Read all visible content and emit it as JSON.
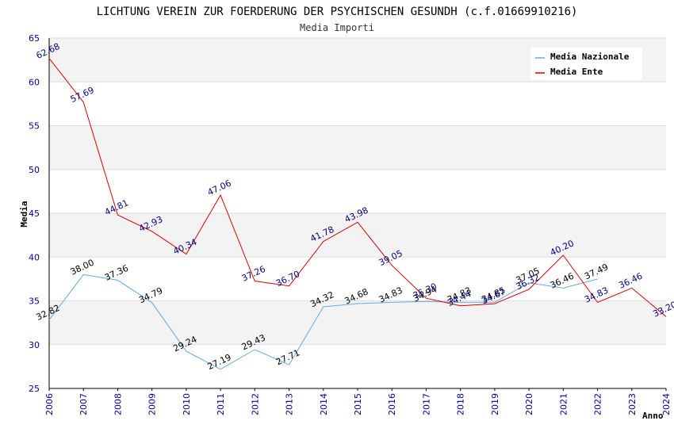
{
  "chart_data": {
    "type": "line",
    "title": "LICHTUNG VEREIN ZUR FOERDERUNG DER PSYCHISCHEN GESUNDH (c.f.01669910216)",
    "subtitle": "Media Importi",
    "xlabel": "Anno",
    "ylabel": "Media",
    "ylim": [
      25,
      65
    ],
    "yticks": [
      25,
      30,
      35,
      40,
      45,
      50,
      55,
      60,
      65
    ],
    "x": [
      2006,
      2007,
      2008,
      2009,
      2010,
      2011,
      2012,
      2013,
      2014,
      2015,
      2016,
      2017,
      2018,
      2019,
      2020,
      2021,
      2022,
      2023,
      2024
    ],
    "series": [
      {
        "name": "Media Nazionale",
        "color": "#66aadd",
        "label_color": "#000000",
        "x": [
          2006,
          2007,
          2008,
          2009,
          2010,
          2011,
          2012,
          2013,
          2014,
          2015,
          2016,
          2017,
          2018,
          2019,
          2020,
          2021,
          2022
        ],
        "values": [
          32.82,
          38.0,
          37.36,
          34.79,
          29.24,
          27.19,
          29.43,
          27.71,
          34.32,
          34.68,
          34.83,
          34.94,
          34.83,
          34.85,
          37.05,
          36.46,
          37.49
        ],
        "labels": [
          "32.82",
          "38.00",
          "37.36",
          "34.79",
          "29.24",
          "27.19",
          "29.43",
          "27.71",
          "34.32",
          "34.68",
          "34.83",
          "34.94",
          "34.83",
          "34.85",
          "37.05",
          "36.46",
          "37.49"
        ]
      },
      {
        "name": "Media Ente",
        "color": "#dd0000",
        "label_color": "#000080",
        "x": [
          2006,
          2007,
          2008,
          2009,
          2010,
          2011,
          2012,
          2013,
          2014,
          2015,
          2016,
          2017,
          2018,
          2019,
          2020,
          2021,
          2022,
          2023,
          2024
        ],
        "values": [
          62.68,
          57.69,
          44.81,
          42.93,
          40.34,
          47.06,
          37.26,
          36.7,
          41.78,
          43.98,
          39.05,
          35.3,
          34.44,
          34.67,
          36.32,
          40.2,
          34.83,
          36.46,
          33.2
        ],
        "labels": [
          "62.68",
          "57.69",
          "44.81",
          "42.93",
          "40.34",
          "47.06",
          "37.26",
          "36.70",
          "41.78",
          "43.98",
          "39.05",
          "35.30",
          "34.44",
          "34.67",
          "36.32",
          "40.20",
          "34.83",
          "36.46",
          "33.20"
        ]
      }
    ],
    "grid": true,
    "legend_position": "top-right"
  }
}
